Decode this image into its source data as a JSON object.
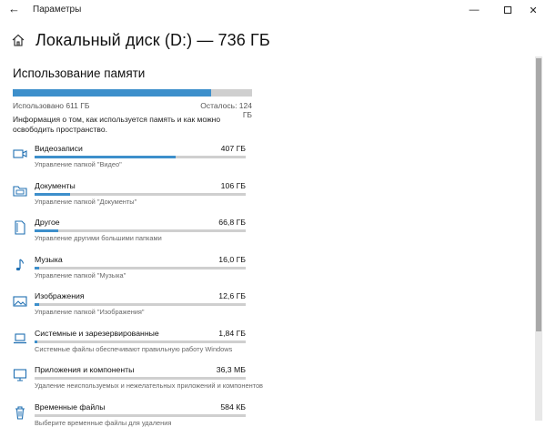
{
  "window": {
    "title": "Параметры"
  },
  "header": {
    "title": "Локальный диск (D:) — 736 ГБ"
  },
  "memory": {
    "section_title": "Использование памяти",
    "used_label": "Использовано 611 ГБ",
    "free_label": "Осталось: 124 ГБ",
    "used_fraction": 0.83,
    "info_text": "Информация о том, как используется память и как можно освободить пространство."
  },
  "categories": [
    {
      "name": "Видеозаписи",
      "size": "407 ГБ",
      "subtitle": "Управление папкой \"Видео\"",
      "fraction": 0.67,
      "icon": "video-icon"
    },
    {
      "name": "Документы",
      "size": "106 ГБ",
      "subtitle": "Управление папкой \"Документы\"",
      "fraction": 0.17,
      "icon": "folder-icon"
    },
    {
      "name": "Другое",
      "size": "66,8 ГБ",
      "subtitle": "Управление другими большими папками",
      "fraction": 0.11,
      "icon": "document-icon"
    },
    {
      "name": "Музыка",
      "size": "16,0 ГБ",
      "subtitle": "Управление папкой \"Музыка\"",
      "fraction": 0.02,
      "icon": "music-note-icon"
    },
    {
      "name": "Изображения",
      "size": "12,6 ГБ",
      "subtitle": "Управление папкой \"Изображения\"",
      "fraction": 0.02,
      "icon": "image-icon"
    },
    {
      "name": "Системные и зарезервированные",
      "size": "1,84 ГБ",
      "subtitle": "Системные файлы обеспечивают правильную работу Windows",
      "fraction": 0.003,
      "icon": "laptop-icon"
    },
    {
      "name": "Приложения и компоненты",
      "size": "36,3 МБ",
      "subtitle": "Удаление неиспользуемых и нежелательных приложений и компонентов",
      "fraction": 0.0,
      "icon": "monitor-icon"
    },
    {
      "name": "Временные файлы",
      "size": "584 КБ",
      "subtitle": "Выберите временные файлы для удаления",
      "fraction": 0.0,
      "icon": "trash-icon"
    }
  ],
  "colors": {
    "accent": "#3d8fcb",
    "track": "#cfcfcf"
  }
}
